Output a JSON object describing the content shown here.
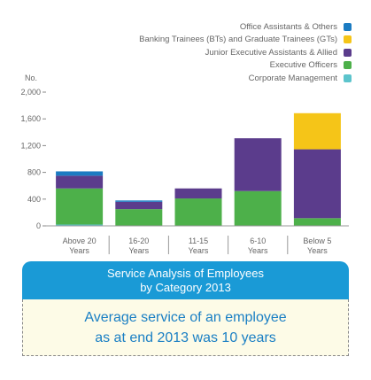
{
  "chart_data": {
    "type": "bar",
    "stacked": true,
    "categories": [
      [
        "Above 20",
        "Years"
      ],
      [
        "16-20",
        "Years"
      ],
      [
        "11-15",
        "Years"
      ],
      [
        "6-10",
        "Years"
      ],
      [
        "Below 5",
        "Years"
      ]
    ],
    "series": [
      {
        "name": "Corporate Management",
        "color": "#5cc4cc",
        "values": [
          20,
          5,
          0,
          0,
          5
        ]
      },
      {
        "name": "Executive Officers",
        "color": "#4db04a",
        "values": [
          540,
          245,
          410,
          520,
          110
        ]
      },
      {
        "name": "Junior Executive Assistants & Allied",
        "color": "#5b3c8c",
        "values": [
          190,
          110,
          150,
          790,
          1030
        ]
      },
      {
        "name": "Banking Trainees (BTs) and Graduate Trainees (GTs)",
        "color": "#f5c518",
        "values": [
          0,
          0,
          0,
          0,
          540
        ]
      },
      {
        "name": "Office Assistants & Others",
        "color": "#1b7bc2",
        "values": [
          65,
          20,
          0,
          0,
          0
        ]
      }
    ],
    "ylabel": "No.",
    "ylim": [
      0,
      2000
    ],
    "yticks": [
      0,
      400,
      800,
      1200,
      1600,
      2000
    ],
    "ytick_labels": [
      "0",
      "400",
      "800",
      "1,200",
      "1,600",
      "2,000"
    ],
    "legend_position": "top-right",
    "grid": false
  },
  "legend_order": [
    4,
    3,
    2,
    1,
    0
  ],
  "caption": {
    "title_line1": "Service Analysis of Employees",
    "title_line2": "by Category 2013",
    "message_line1": "Average service of an employee",
    "message_line2": "as at end 2013 was 10 years"
  }
}
